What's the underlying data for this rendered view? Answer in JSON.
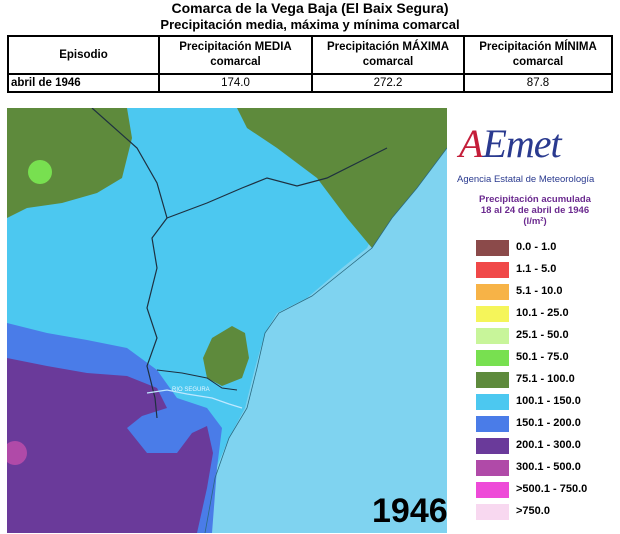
{
  "header": {
    "title": "Comarca de la Vega Baja (El Baix Segura)",
    "subtitle": "Precipitación media, máxima y mínima comarcal"
  },
  "table": {
    "columns": [
      "Episodio",
      "Precipitación MEDIA\ncomarcal",
      "Precipitación MÁXIMA\ncomarcal",
      "Precipitación MÍNIMA\ncomarcal"
    ],
    "row": {
      "episodio": "abril de 1946",
      "media": "174.0",
      "maxima": "272.2",
      "minima": "87.8"
    }
  },
  "map": {
    "year": "1946",
    "river_label": "RIO SEGURA"
  },
  "logo": {
    "word_prefix": "A",
    "word_rest": "Emet",
    "subtitle": "Agencia Estatal de Meteorología"
  },
  "legend": {
    "title_line1": "Precipitación acumulada",
    "title_line2": "18 al 24 de abril de 1946",
    "title_line3": "(l/m²)",
    "items": [
      {
        "label": "0.0 - 1.0",
        "color": "#8b4a4a"
      },
      {
        "label": "1.1 - 5.0",
        "color": "#f04848"
      },
      {
        "label": "5.1 - 10.0",
        "color": "#f7b347"
      },
      {
        "label": "10.1 - 25.0",
        "color": "#f5f55a"
      },
      {
        "label": "25.1 - 50.0",
        "color": "#c8f59a"
      },
      {
        "label": "50.1 - 75.0",
        "color": "#78e050"
      },
      {
        "label": "75.1 - 100.0",
        "color": "#5e8a3c"
      },
      {
        "label": "100.1 - 150.0",
        "color": "#4cc8f0"
      },
      {
        "label": "150.1 - 200.0",
        "color": "#4a7ce8"
      },
      {
        "label": "200.1 - 300.0",
        "color": "#6a3a9a"
      },
      {
        "label": "300.1 - 500.0",
        "color": "#b04aa8"
      },
      {
        "label": ">500.1 - 750.0",
        "color": "#ee4ad8"
      },
      {
        "label": ">750.0",
        "color": "#f8d8f0"
      }
    ]
  }
}
